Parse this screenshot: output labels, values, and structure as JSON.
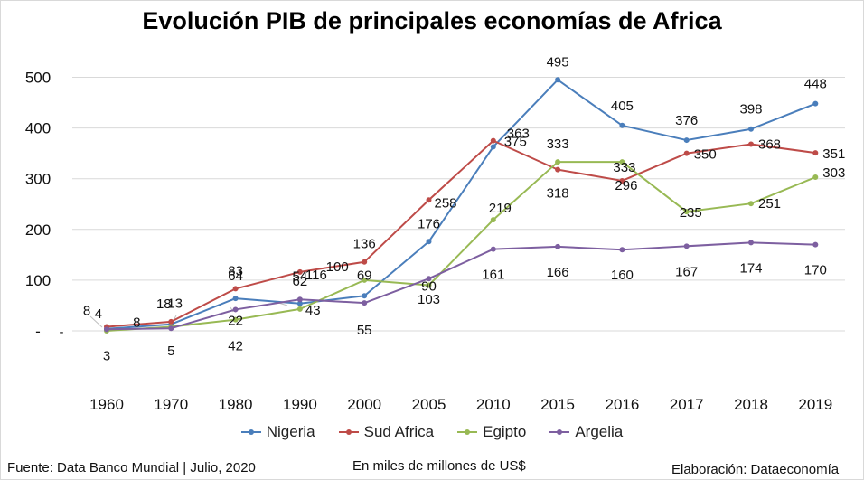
{
  "title": "Evolución PIB de principales economías de Africa",
  "footer": {
    "source": "Fuente: Data Banco Mundial | Julio, 2020",
    "units": "En miles de millones de US$",
    "credit": "Elaboración: Dataeconomía"
  },
  "chart_data": {
    "type": "line",
    "title": "Evolución PIB de principales economías de Africa",
    "xlabel": "",
    "ylabel": "",
    "categories": [
      "1960",
      "1970",
      "1980",
      "1990",
      "2000",
      "2005",
      "2010",
      "2015",
      "2016",
      "2017",
      "2018",
      "2019"
    ],
    "y_ticks": [
      "-",
      "100",
      "200",
      "300",
      "400",
      "500"
    ],
    "ylim": [
      0,
      500
    ],
    "grid": true,
    "legend": "bottom",
    "series": [
      {
        "name": "Nigeria",
        "color": "#4a7ebb",
        "values": [
          4,
          13,
          64,
          54,
          69,
          176,
          363,
          495,
          405,
          376,
          398,
          448
        ],
        "labels": [
          "4",
          "13",
          "64",
          "54",
          "69",
          "176",
          "363",
          "495",
          "405",
          "376",
          "398",
          "448"
        ]
      },
      {
        "name": "Sud Africa",
        "color": "#be4b48",
        "values": [
          8,
          18,
          83,
          116,
          136,
          258,
          375,
          318,
          296,
          350,
          368,
          351
        ],
        "labels": [
          "8",
          "18",
          "83",
          "116",
          "136",
          "258",
          "375",
          "318",
          "296",
          "350",
          "368",
          "351"
        ]
      },
      {
        "name": "Egipto",
        "color": "#98b954",
        "values": [
          0,
          8,
          22,
          43,
          100,
          90,
          219,
          333,
          333,
          235,
          251,
          303
        ],
        "labels": [
          "-",
          "8",
          "22",
          "43",
          "100",
          "90",
          "219",
          "333",
          "333",
          "235",
          "251",
          "303"
        ]
      },
      {
        "name": "Argelia",
        "color": "#7d5fa0",
        "values": [
          3,
          5,
          42,
          62,
          55,
          103,
          161,
          166,
          160,
          167,
          174,
          170
        ],
        "labels": [
          "3",
          "5",
          "42",
          "62",
          "55",
          "103",
          "161",
          "166",
          "160",
          "167",
          "174",
          "170"
        ]
      }
    ]
  }
}
